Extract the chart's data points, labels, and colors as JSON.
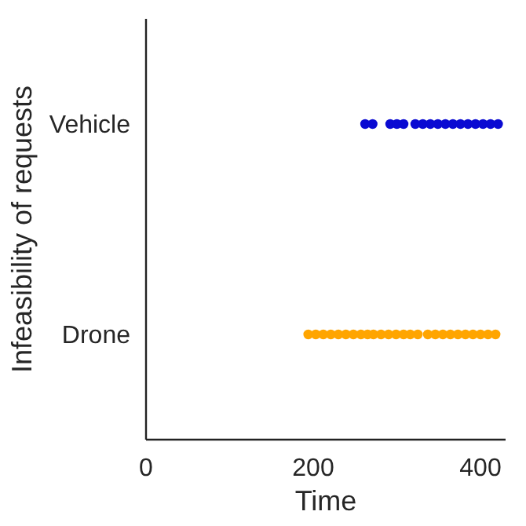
{
  "chart_data": {
    "type": "scatter",
    "orientation": "horizontal",
    "xlabel": "Time",
    "ylabel": "Infeasibility of requests",
    "xlim": [
      0,
      430
    ],
    "xticks": [
      0,
      200,
      400
    ],
    "categories": [
      "Vehicle",
      "Drone"
    ],
    "grid": false,
    "marker": "circle",
    "series": [
      {
        "color": "#0a0ad2",
        "x": [
          "Vehicle",
          "Vehicle",
          "Vehicle",
          "Vehicle",
          "Vehicle",
          "Vehicle",
          "Vehicle",
          "Vehicle",
          "Vehicle",
          "Vehicle",
          "Vehicle",
          "Vehicle",
          "Vehicle",
          "Vehicle",
          "Vehicle",
          "Vehicle",
          "Vehicle"
        ],
        "values": [
          262,
          271,
          292,
          300,
          308,
          322,
          331,
          340,
          349,
          358,
          367,
          376,
          385,
          394,
          403,
          412,
          421
        ]
      },
      {
        "color": "#ffa500",
        "x": [
          "Drone",
          "Drone",
          "Drone",
          "Drone",
          "Drone",
          "Drone",
          "Drone",
          "Drone",
          "Drone",
          "Drone",
          "Drone",
          "Drone",
          "Drone",
          "Drone",
          "Drone",
          "Drone",
          "Drone",
          "Drone",
          "Drone",
          "Drone",
          "Drone",
          "Drone",
          "Drone",
          "Drone",
          "Drone",
          "Drone"
        ],
        "values": [
          194,
          203,
          212,
          221,
          230,
          239,
          248,
          257,
          265,
          272,
          281,
          290,
          299,
          308,
          316,
          325,
          337,
          346,
          355,
          364,
          373,
          382,
          391,
          400,
          409,
          418
        ]
      }
    ]
  }
}
